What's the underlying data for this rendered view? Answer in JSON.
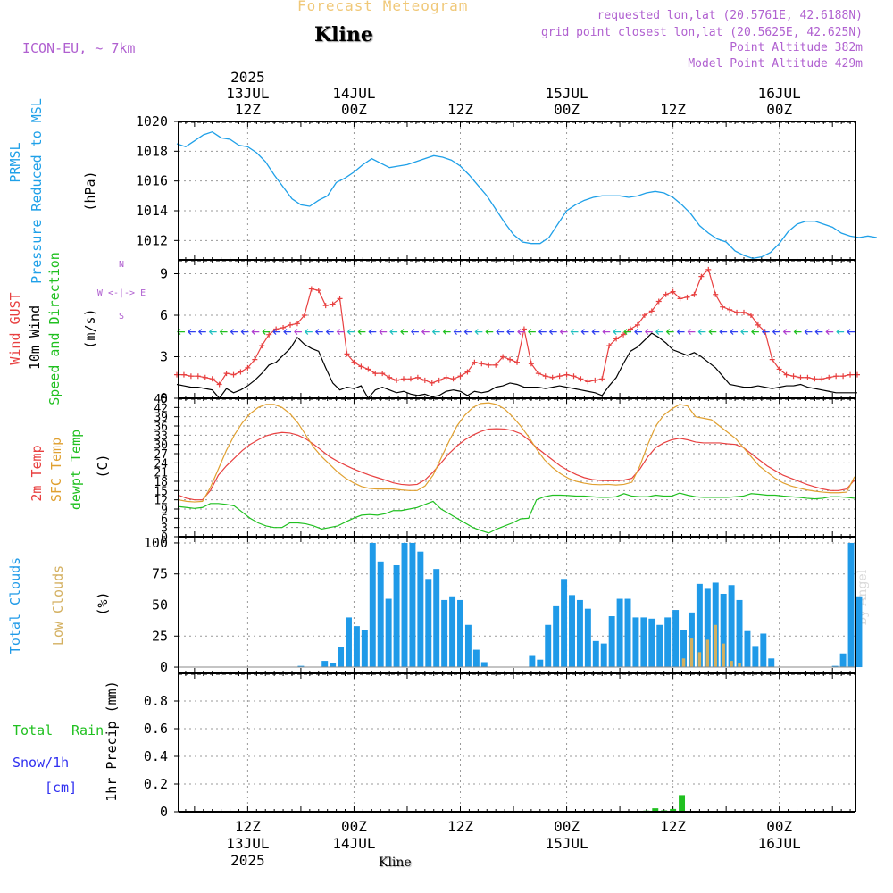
{
  "header": {
    "title": "Forecast Meteogram",
    "location": "Kline",
    "model": "ICON-EU, ~ 7km",
    "requested": "requested lon,lat (20.5761E, 42.6188N)",
    "grid_point": "grid point closest lon,lat (20.5625E, 42.625N)",
    "point_altitude": "Point Altitude 382m",
    "model_altitude": "Model Point Altitude 429m",
    "footer_location": "Kline",
    "watermark": "by Angel"
  },
  "time_axis": {
    "top_labels": [
      {
        "t": 12,
        "lines": [
          "2025",
          "13JUL",
          "12Z"
        ]
      },
      {
        "t": 24,
        "lines": [
          "14JUL",
          "00Z"
        ]
      },
      {
        "t": 36,
        "lines": [
          "12Z"
        ]
      },
      {
        "t": 48,
        "lines": [
          "15JUL",
          "00Z"
        ]
      },
      {
        "t": 60,
        "lines": [
          "12Z"
        ]
      },
      {
        "t": 72,
        "lines": [
          "16JUL",
          "00Z"
        ]
      }
    ],
    "bottom_labels": [
      {
        "t": 12,
        "lines": [
          "12Z",
          "13JUL",
          "2025"
        ]
      },
      {
        "t": 24,
        "lines": [
          "00Z",
          "14JUL"
        ]
      },
      {
        "t": 36,
        "lines": [
          "12Z"
        ]
      },
      {
        "t": 48,
        "lines": [
          "00Z",
          "15JUL"
        ]
      },
      {
        "t": 60,
        "lines": [
          "12Z"
        ]
      },
      {
        "t": 72,
        "lines": [
          "00Z",
          "16JUL"
        ]
      }
    ]
  },
  "colors": {
    "pressure": "#1fa0e8",
    "gust": "#e84040",
    "wind": "#000000",
    "t2m": "#e84040",
    "sfc": "#e0a030",
    "dew": "#20c020",
    "total_clouds": "#1f9ae8",
    "low_clouds": "#d4b060",
    "rain": "#20c020",
    "snow": "#3030f0"
  },
  "chart_data": [
    {
      "type": "line",
      "panel": "pressure",
      "ylabel": [
        "PRMSL",
        "Pressure Reduced to MSL",
        "(hPa)"
      ],
      "ylim": [
        1010.7,
        1020
      ],
      "yticks": [
        1012,
        1014,
        1016,
        1018,
        1020
      ],
      "series": [
        {
          "values": [
            1018.5,
            1018.3,
            1018.7,
            1019.1,
            1019.3,
            1018.9,
            1018.8,
            1018.4,
            1018.3,
            1017.9,
            1017.3,
            1016.4,
            1015.6,
            1014.8,
            1014.4,
            1014.3,
            1014.7,
            1015.0,
            1015.9,
            1016.2,
            1016.6,
            1017.1,
            1017.5,
            1017.2,
            1016.9,
            1017.0,
            1017.1,
            1017.3,
            1017.5,
            1017.7,
            1017.6,
            1017.4,
            1017.0,
            1016.4,
            1015.7,
            1015.0,
            1014.1,
            1013.2,
            1012.4,
            1011.9,
            1011.8,
            1011.8,
            1012.2,
            1013.1,
            1014.0,
            1014.4,
            1014.7,
            1014.9,
            1015.0,
            1015.0,
            1015.0,
            1014.9,
            1015.0,
            1015.2,
            1015.3,
            1015.2,
            1014.9,
            1014.4,
            1013.8,
            1013.0,
            1012.5,
            1012.1,
            1011.9,
            1011.3,
            1011.0,
            1010.8,
            1010.9,
            1011.2,
            1011.8,
            1012.6,
            1013.1,
            1013.3,
            1013.3,
            1013.1,
            1012.9,
            1012.5,
            1012.3,
            1012.2,
            1012.3,
            1012.2
          ]
        }
      ]
    },
    {
      "type": "line",
      "panel": "wind",
      "ylabel": [
        "Wind GUST",
        "10m Wind",
        "Speed and Direction",
        "(m/s)"
      ],
      "compass": [
        "N",
        "W <-|-> E",
        "S"
      ],
      "ylim": [
        0,
        10
      ],
      "yticks": [
        0,
        3,
        6,
        9
      ],
      "arrow_y": 4.8,
      "series": [
        {
          "name": "Wind GUST",
          "values": [
            1.7,
            1.7,
            1.6,
            1.6,
            1.5,
            1.4,
            1.0,
            1.8,
            1.7,
            1.9,
            2.2,
            2.8,
            3.8,
            4.6,
            5.0,
            5.1,
            5.3,
            5.4,
            6.0,
            7.9,
            7.8,
            6.7,
            6.8,
            7.2,
            3.2,
            2.6,
            2.3,
            2.1,
            1.8,
            1.8,
            1.5,
            1.3,
            1.4,
            1.4,
            1.5,
            1.3,
            1.1,
            1.3,
            1.5,
            1.4,
            1.6,
            1.9,
            2.6,
            2.5,
            2.4,
            2.4,
            3.0,
            2.8,
            2.6,
            5.0,
            2.5,
            1.8,
            1.6,
            1.5,
            1.6,
            1.7,
            1.6,
            1.4,
            1.2,
            1.3,
            1.4,
            3.8,
            4.3,
            4.6,
            5.0,
            5.3,
            6.0,
            6.3,
            7.0,
            7.5,
            7.7,
            7.2,
            7.3,
            7.5,
            8.8,
            9.3,
            7.5,
            6.6,
            6.4,
            6.2,
            6.2,
            6.0,
            5.3,
            4.8,
            2.8,
            2.1,
            1.7,
            1.6,
            1.5,
            1.5,
            1.4,
            1.4,
            1.5,
            1.6,
            1.6,
            1.7,
            1.7
          ]
        },
        {
          "name": "10m Wind",
          "values": [
            1.0,
            0.9,
            0.8,
            0.8,
            0.7,
            0.6,
            0.0,
            0.7,
            0.4,
            0.6,
            0.9,
            1.3,
            1.8,
            2.4,
            2.6,
            3.1,
            3.6,
            4.4,
            3.9,
            3.6,
            3.4,
            2.2,
            1.1,
            0.6,
            0.8,
            0.7,
            0.9,
            0.0,
            0.6,
            0.8,
            0.6,
            0.4,
            0.5,
            0.3,
            0.2,
            0.3,
            0.1,
            0.2,
            0.5,
            0.6,
            0.5,
            0.2,
            0.5,
            0.4,
            0.5,
            0.8,
            0.9,
            1.1,
            1.0,
            0.8,
            0.8,
            0.8,
            0.7,
            0.8,
            0.9,
            0.8,
            0.7,
            0.6,
            0.5,
            0.4,
            0.2,
            0.9,
            1.5,
            2.5,
            3.4,
            3.7,
            4.2,
            4.7,
            4.4,
            4.0,
            3.5,
            3.3,
            3.1,
            3.3,
            3.0,
            2.6,
            2.2,
            1.6,
            1.0,
            0.9,
            0.8,
            0.8,
            0.9,
            0.8,
            0.7,
            0.8,
            0.9,
            0.9,
            1.0,
            0.8,
            0.7,
            0.6,
            0.5,
            0.4,
            0.4,
            0.4,
            0.4
          ]
        }
      ]
    },
    {
      "type": "line",
      "panel": "temperature",
      "ylabel": [
        "2m Temp",
        "SFC Temp",
        "dewpt Temp",
        "(C)"
      ],
      "ylim": [
        0,
        45
      ],
      "yticks": [
        0,
        3,
        6,
        9,
        12,
        15,
        18,
        21,
        24,
        27,
        30,
        33,
        36,
        39,
        42,
        45
      ],
      "series": [
        {
          "name": "2m Temp",
          "values": [
            13.5,
            12.5,
            12.0,
            12.0,
            15.0,
            20.0,
            23.0,
            25.5,
            28.0,
            30.0,
            31.5,
            32.8,
            33.5,
            33.9,
            33.7,
            33.0,
            31.8,
            30.0,
            28.0,
            26.0,
            24.5,
            23.2,
            22.0,
            21.0,
            20.0,
            19.2,
            18.4,
            17.5,
            17.0,
            16.8,
            17.0,
            18.5,
            21.0,
            24.0,
            27.0,
            29.5,
            31.5,
            33.0,
            34.2,
            35.0,
            35.1,
            35.0,
            34.5,
            33.5,
            31.5,
            29.0,
            27.0,
            25.0,
            23.0,
            21.5,
            20.2,
            19.2,
            18.6,
            18.3,
            18.2,
            18.2,
            18.4,
            19.0,
            22.0,
            26.0,
            29.0,
            30.5,
            31.5,
            32.0,
            31.5,
            30.8,
            30.5,
            30.5,
            30.5,
            30.2,
            30.0,
            29.0,
            27.0,
            25.0,
            23.0,
            21.5,
            20.0,
            19.0,
            18.0,
            17.0,
            16.2,
            15.5,
            15.0,
            15.0,
            15.5,
            18.5
          ]
        },
        {
          "name": "SFC Temp",
          "values": [
            12.0,
            11.5,
            11.3,
            11.5,
            16.0,
            22.0,
            28.0,
            33.0,
            37.0,
            40.0,
            42.0,
            43.0,
            43.0,
            42.0,
            40.0,
            37.0,
            33.0,
            29.0,
            26.0,
            23.5,
            21.0,
            19.0,
            17.5,
            16.3,
            15.7,
            15.5,
            15.5,
            15.5,
            15.2,
            15.0,
            15.0,
            16.5,
            20.0,
            25.5,
            31.0,
            36.0,
            39.5,
            42.0,
            43.3,
            43.5,
            43.0,
            41.5,
            39.0,
            36.0,
            32.5,
            28.5,
            25.0,
            22.5,
            20.5,
            19.0,
            18.0,
            17.4,
            17.0,
            16.9,
            17.0,
            16.8,
            17.0,
            17.7,
            23.0,
            30.0,
            36.0,
            39.5,
            41.5,
            43.0,
            42.5,
            39.0,
            38.5,
            38.0,
            36.0,
            34.0,
            32.0,
            29.0,
            26.0,
            23.0,
            21.0,
            19.0,
            17.5,
            16.5,
            15.8,
            15.2,
            14.8,
            14.5,
            14.3,
            14.3,
            14.5,
            19.5
          ]
        },
        {
          "name": "dewpt Temp",
          "values": [
            9.8,
            9.5,
            9.2,
            9.5,
            10.8,
            10.8,
            10.5,
            10.0,
            8.0,
            6.0,
            4.5,
            3.5,
            3.0,
            3.0,
            4.5,
            4.5,
            4.2,
            3.5,
            2.5,
            3.0,
            3.5,
            4.8,
            6.0,
            7.0,
            7.2,
            7.0,
            7.5,
            8.5,
            8.5,
            9.0,
            9.5,
            10.5,
            11.5,
            9.0,
            7.5,
            6.0,
            4.5,
            3.0,
            2.0,
            1.2,
            2.5,
            3.5,
            4.5,
            5.8,
            6.0,
            12.0,
            13.0,
            13.5,
            13.5,
            13.4,
            13.2,
            13.2,
            13.0,
            12.8,
            12.8,
            13.0,
            14.0,
            13.2,
            13.0,
            13.0,
            13.5,
            13.2,
            13.2,
            14.2,
            13.5,
            13.0,
            12.8,
            12.8,
            12.8,
            12.8,
            13.0,
            13.2,
            14.0,
            13.8,
            13.5,
            13.5,
            13.2,
            13.0,
            12.8,
            12.5,
            12.3,
            12.5,
            13.0,
            13.0,
            12.8,
            12.5
          ]
        }
      ]
    },
    {
      "type": "bar",
      "panel": "clouds",
      "ylabel": [
        "Total Clouds",
        "Low Clouds",
        "(%)"
      ],
      "ylim": [
        -5,
        105
      ],
      "yticks": [
        0,
        25,
        50,
        75,
        100
      ],
      "series": [
        {
          "name": "Total Clouds",
          "values": [
            0,
            0,
            0,
            0,
            0,
            0,
            0,
            0,
            0,
            0,
            0,
            0,
            0,
            0,
            0,
            1,
            0,
            0,
            5,
            3,
            16,
            40,
            33,
            30,
            100,
            85,
            55,
            82,
            100,
            100,
            93,
            71,
            79,
            54,
            57,
            54,
            34,
            14,
            4,
            0,
            0,
            0,
            0,
            0,
            9,
            6,
            34,
            49,
            71,
            58,
            54,
            47,
            21,
            19,
            41,
            55,
            55,
            40,
            40,
            39,
            34,
            40,
            46,
            30,
            44,
            67,
            63,
            68,
            59,
            66,
            54,
            29,
            17,
            27,
            7,
            0,
            0,
            0,
            0,
            0,
            0,
            0,
            1,
            11,
            100,
            57
          ]
        },
        {
          "name": "Low Clouds",
          "values": [
            0,
            0,
            0,
            0,
            0,
            0,
            0,
            0,
            0,
            0,
            0,
            0,
            0,
            0,
            0,
            0,
            0,
            0,
            0,
            0,
            0,
            0,
            0,
            0,
            0,
            0,
            0,
            0,
            0,
            0,
            0,
            0,
            0,
            0,
            0,
            0,
            0,
            0,
            0,
            0,
            0,
            0,
            0,
            0,
            0,
            0,
            0,
            0,
            0,
            0,
            0,
            0,
            0,
            0,
            0,
            0,
            0,
            0,
            0,
            0,
            0,
            0,
            0,
            7,
            23,
            12,
            22,
            34,
            19,
            5,
            3,
            0,
            0,
            0,
            0,
            0,
            0,
            0,
            0,
            0,
            0,
            0,
            0,
            0,
            0,
            0
          ]
        }
      ]
    },
    {
      "type": "bar",
      "panel": "precip",
      "ylabel": [
        "1hr Precip (mm)"
      ],
      "legend": [
        "Total",
        "Rain",
        "Snow/1h",
        "[cm]"
      ],
      "ylim": [
        0,
        1.0
      ],
      "yticks": [
        "0",
        "0.2",
        "0.4",
        "0.6",
        "0.8"
      ],
      "series": [
        {
          "name": "Rain",
          "points": [
            {
              "t": 57,
              "v": 0.008
            },
            {
              "t": 58,
              "v": 0.025
            },
            {
              "t": 59,
              "v": 0.01
            },
            {
              "t": 60,
              "v": 0.02
            },
            {
              "t": 61,
              "v": 0.12
            }
          ]
        }
      ]
    }
  ]
}
